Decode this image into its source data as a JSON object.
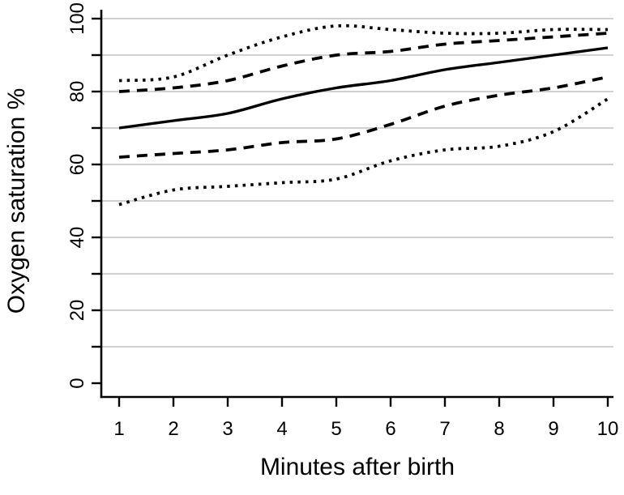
{
  "figure": {
    "background_color": "#ffffff",
    "axis_color": "#000000",
    "gridline_color": "#c3c3c3",
    "series_color": "#000000"
  },
  "chart_data": {
    "type": "line",
    "title": "",
    "xlabel": "Minutes after birth",
    "ylabel": "Oxygen saturation %",
    "x": [
      1,
      2,
      3,
      4,
      5,
      6,
      7,
      8,
      9,
      10
    ],
    "xlim": [
      1,
      10
    ],
    "ylim": [
      0,
      100
    ],
    "x_tick_labels": [
      "1",
      "2",
      "3",
      "4",
      "5",
      "6",
      "7",
      "8",
      "9",
      "10"
    ],
    "y_ticks_minor": [
      0,
      10,
      20,
      30,
      40,
      50,
      60,
      70,
      80,
      90,
      100
    ],
    "y_ticks_labeled": [
      0,
      20,
      40,
      60,
      80,
      100
    ],
    "grid": "horizontal gridlines every 10 units, values 10-100",
    "legend_position": "none",
    "series": [
      {
        "name": "upper-dotted",
        "style": "dotted",
        "values": [
          83,
          84,
          90,
          95,
          98,
          97,
          96,
          96,
          97,
          97
        ]
      },
      {
        "name": "upper-dashed",
        "style": "dashed",
        "values": [
          80,
          81,
          83,
          87,
          90,
          91,
          93,
          94,
          95,
          96
        ]
      },
      {
        "name": "median-solid",
        "style": "solid",
        "values": [
          70,
          72,
          74,
          78,
          81,
          83,
          86,
          88,
          90,
          92
        ]
      },
      {
        "name": "lower-dashed",
        "style": "dashed",
        "values": [
          62,
          63,
          64,
          66,
          67,
          71,
          76,
          79,
          81,
          84
        ]
      },
      {
        "name": "lower-dotted",
        "style": "dotted",
        "values": [
          49,
          53,
          54,
          55,
          56,
          61,
          64,
          65,
          69,
          78
        ]
      }
    ]
  }
}
